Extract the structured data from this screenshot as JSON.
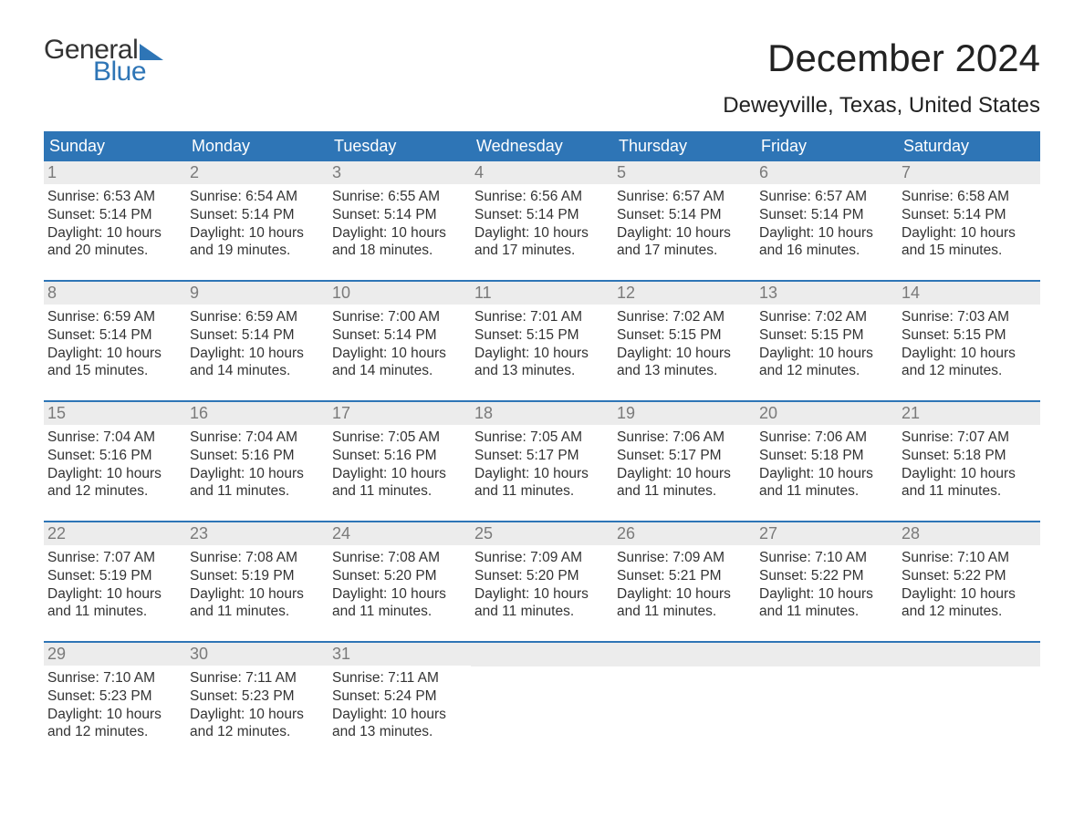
{
  "logo": {
    "word1": "General",
    "word2": "Blue"
  },
  "title": "December 2024",
  "location": "Deweyville, Texas, United States",
  "colors": {
    "header_bg": "#2e75b6",
    "header_text": "#ffffff",
    "daynum_bg": "#ececec",
    "daynum_text": "#7a7a7a",
    "body_text": "#333333",
    "accent": "#2e75b6",
    "page_bg": "#ffffff"
  },
  "typography": {
    "title_fontsize": 42,
    "location_fontsize": 24,
    "header_fontsize": 18,
    "daynum_fontsize": 18,
    "detail_fontsize": 15.5,
    "font_family": "Arial"
  },
  "day_headers": [
    "Sunday",
    "Monday",
    "Tuesday",
    "Wednesday",
    "Thursday",
    "Friday",
    "Saturday"
  ],
  "weeks": [
    [
      {
        "n": "1",
        "sunrise": "Sunrise: 6:53 AM",
        "sunset": "Sunset: 5:14 PM",
        "d1": "Daylight: 10 hours",
        "d2": "and 20 minutes."
      },
      {
        "n": "2",
        "sunrise": "Sunrise: 6:54 AM",
        "sunset": "Sunset: 5:14 PM",
        "d1": "Daylight: 10 hours",
        "d2": "and 19 minutes."
      },
      {
        "n": "3",
        "sunrise": "Sunrise: 6:55 AM",
        "sunset": "Sunset: 5:14 PM",
        "d1": "Daylight: 10 hours",
        "d2": "and 18 minutes."
      },
      {
        "n": "4",
        "sunrise": "Sunrise: 6:56 AM",
        "sunset": "Sunset: 5:14 PM",
        "d1": "Daylight: 10 hours",
        "d2": "and 17 minutes."
      },
      {
        "n": "5",
        "sunrise": "Sunrise: 6:57 AM",
        "sunset": "Sunset: 5:14 PM",
        "d1": "Daylight: 10 hours",
        "d2": "and 17 minutes."
      },
      {
        "n": "6",
        "sunrise": "Sunrise: 6:57 AM",
        "sunset": "Sunset: 5:14 PM",
        "d1": "Daylight: 10 hours",
        "d2": "and 16 minutes."
      },
      {
        "n": "7",
        "sunrise": "Sunrise: 6:58 AM",
        "sunset": "Sunset: 5:14 PM",
        "d1": "Daylight: 10 hours",
        "d2": "and 15 minutes."
      }
    ],
    [
      {
        "n": "8",
        "sunrise": "Sunrise: 6:59 AM",
        "sunset": "Sunset: 5:14 PM",
        "d1": "Daylight: 10 hours",
        "d2": "and 15 minutes."
      },
      {
        "n": "9",
        "sunrise": "Sunrise: 6:59 AM",
        "sunset": "Sunset: 5:14 PM",
        "d1": "Daylight: 10 hours",
        "d2": "and 14 minutes."
      },
      {
        "n": "10",
        "sunrise": "Sunrise: 7:00 AM",
        "sunset": "Sunset: 5:14 PM",
        "d1": "Daylight: 10 hours",
        "d2": "and 14 minutes."
      },
      {
        "n": "11",
        "sunrise": "Sunrise: 7:01 AM",
        "sunset": "Sunset: 5:15 PM",
        "d1": "Daylight: 10 hours",
        "d2": "and 13 minutes."
      },
      {
        "n": "12",
        "sunrise": "Sunrise: 7:02 AM",
        "sunset": "Sunset: 5:15 PM",
        "d1": "Daylight: 10 hours",
        "d2": "and 13 minutes."
      },
      {
        "n": "13",
        "sunrise": "Sunrise: 7:02 AM",
        "sunset": "Sunset: 5:15 PM",
        "d1": "Daylight: 10 hours",
        "d2": "and 12 minutes."
      },
      {
        "n": "14",
        "sunrise": "Sunrise: 7:03 AM",
        "sunset": "Sunset: 5:15 PM",
        "d1": "Daylight: 10 hours",
        "d2": "and 12 minutes."
      }
    ],
    [
      {
        "n": "15",
        "sunrise": "Sunrise: 7:04 AM",
        "sunset": "Sunset: 5:16 PM",
        "d1": "Daylight: 10 hours",
        "d2": "and 12 minutes."
      },
      {
        "n": "16",
        "sunrise": "Sunrise: 7:04 AM",
        "sunset": "Sunset: 5:16 PM",
        "d1": "Daylight: 10 hours",
        "d2": "and 11 minutes."
      },
      {
        "n": "17",
        "sunrise": "Sunrise: 7:05 AM",
        "sunset": "Sunset: 5:16 PM",
        "d1": "Daylight: 10 hours",
        "d2": "and 11 minutes."
      },
      {
        "n": "18",
        "sunrise": "Sunrise: 7:05 AM",
        "sunset": "Sunset: 5:17 PM",
        "d1": "Daylight: 10 hours",
        "d2": "and 11 minutes."
      },
      {
        "n": "19",
        "sunrise": "Sunrise: 7:06 AM",
        "sunset": "Sunset: 5:17 PM",
        "d1": "Daylight: 10 hours",
        "d2": "and 11 minutes."
      },
      {
        "n": "20",
        "sunrise": "Sunrise: 7:06 AM",
        "sunset": "Sunset: 5:18 PM",
        "d1": "Daylight: 10 hours",
        "d2": "and 11 minutes."
      },
      {
        "n": "21",
        "sunrise": "Sunrise: 7:07 AM",
        "sunset": "Sunset: 5:18 PM",
        "d1": "Daylight: 10 hours",
        "d2": "and 11 minutes."
      }
    ],
    [
      {
        "n": "22",
        "sunrise": "Sunrise: 7:07 AM",
        "sunset": "Sunset: 5:19 PM",
        "d1": "Daylight: 10 hours",
        "d2": "and 11 minutes."
      },
      {
        "n": "23",
        "sunrise": "Sunrise: 7:08 AM",
        "sunset": "Sunset: 5:19 PM",
        "d1": "Daylight: 10 hours",
        "d2": "and 11 minutes."
      },
      {
        "n": "24",
        "sunrise": "Sunrise: 7:08 AM",
        "sunset": "Sunset: 5:20 PM",
        "d1": "Daylight: 10 hours",
        "d2": "and 11 minutes."
      },
      {
        "n": "25",
        "sunrise": "Sunrise: 7:09 AM",
        "sunset": "Sunset: 5:20 PM",
        "d1": "Daylight: 10 hours",
        "d2": "and 11 minutes."
      },
      {
        "n": "26",
        "sunrise": "Sunrise: 7:09 AM",
        "sunset": "Sunset: 5:21 PM",
        "d1": "Daylight: 10 hours",
        "d2": "and 11 minutes."
      },
      {
        "n": "27",
        "sunrise": "Sunrise: 7:10 AM",
        "sunset": "Sunset: 5:22 PM",
        "d1": "Daylight: 10 hours",
        "d2": "and 11 minutes."
      },
      {
        "n": "28",
        "sunrise": "Sunrise: 7:10 AM",
        "sunset": "Sunset: 5:22 PM",
        "d1": "Daylight: 10 hours",
        "d2": "and 12 minutes."
      }
    ],
    [
      {
        "n": "29",
        "sunrise": "Sunrise: 7:10 AM",
        "sunset": "Sunset: 5:23 PM",
        "d1": "Daylight: 10 hours",
        "d2": "and 12 minutes."
      },
      {
        "n": "30",
        "sunrise": "Sunrise: 7:11 AM",
        "sunset": "Sunset: 5:23 PM",
        "d1": "Daylight: 10 hours",
        "d2": "and 12 minutes."
      },
      {
        "n": "31",
        "sunrise": "Sunrise: 7:11 AM",
        "sunset": "Sunset: 5:24 PM",
        "d1": "Daylight: 10 hours",
        "d2": "and 13 minutes."
      },
      null,
      null,
      null,
      null
    ]
  ]
}
